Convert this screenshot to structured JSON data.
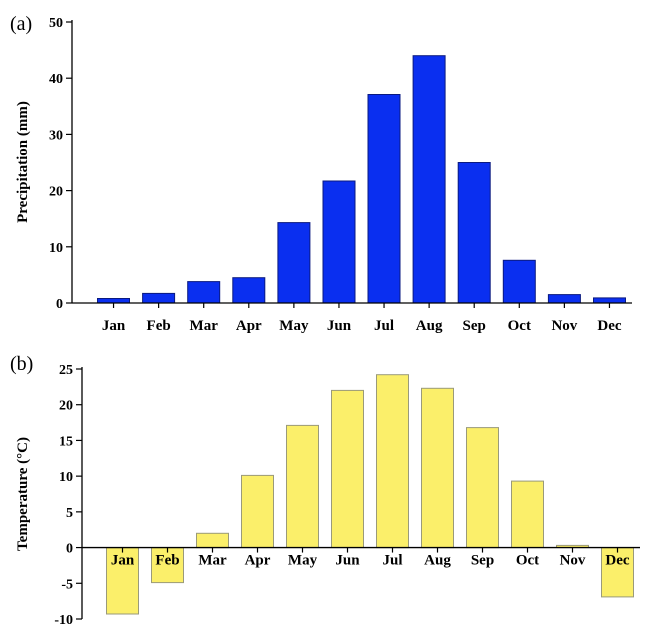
{
  "chart_data": [
    {
      "type": "bar",
      "panel_label": "(a)",
      "categories": [
        "Jan",
        "Feb",
        "Mar",
        "Apr",
        "May",
        "Jun",
        "Jul",
        "Aug",
        "Sep",
        "Oct",
        "Nov",
        "Dec"
      ],
      "values": [
        0.8,
        1.7,
        3.8,
        4.5,
        14.3,
        21.7,
        37.1,
        44.0,
        25.0,
        7.6,
        1.5,
        0.9
      ],
      "xlabel": "",
      "ylabel": "Precipitation (mm)",
      "ylim": [
        0,
        50
      ],
      "yticks": [
        0,
        10,
        20,
        30,
        40,
        50
      ],
      "bar_color": "#0a2ff0",
      "grid": false
    },
    {
      "type": "bar",
      "panel_label": "(b)",
      "categories": [
        "Jan",
        "Feb",
        "Mar",
        "Apr",
        "May",
        "Jun",
        "Jul",
        "Aug",
        "Sep",
        "Oct",
        "Nov",
        "Dec"
      ],
      "values": [
        -9.3,
        -4.9,
        2.0,
        10.1,
        17.1,
        22.0,
        24.2,
        22.3,
        16.8,
        9.3,
        0.3,
        -6.9
      ],
      "xlabel": "",
      "ylabel": "Temperature (°C)",
      "ylim": [
        -10,
        25
      ],
      "yticks": [
        -10,
        -5,
        0,
        5,
        10,
        15,
        20,
        25
      ],
      "bar_color": "#fbef6a",
      "grid": false
    }
  ]
}
